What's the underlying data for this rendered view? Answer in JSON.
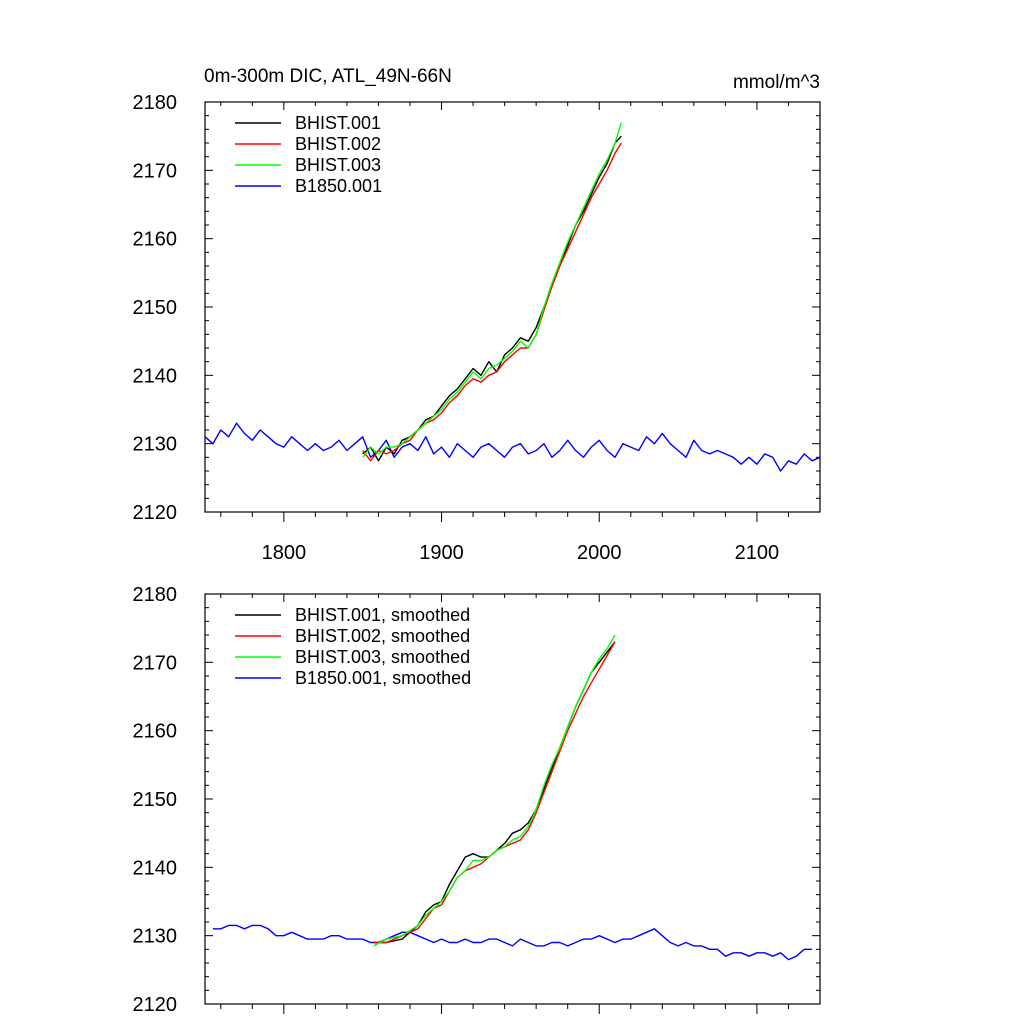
{
  "chart_data": [
    {
      "type": "line",
      "title": "0m-300m DIC, ATL_49N-66N",
      "units": "mmol/m^3",
      "xlim": [
        1750,
        2140
      ],
      "ylim": [
        2120,
        2180
      ],
      "xticks": [
        1800,
        1900,
        2000,
        2100
      ],
      "yticks": [
        2120,
        2130,
        2140,
        2150,
        2160,
        2170,
        2180
      ],
      "legend_position": "top-left",
      "series": [
        {
          "name": "BHIST.001",
          "color": "#000000",
          "x": [
            1850,
            1855,
            1860,
            1865,
            1870,
            1875,
            1880,
            1885,
            1890,
            1895,
            1900,
            1905,
            1910,
            1915,
            1920,
            1925,
            1930,
            1935,
            1940,
            1945,
            1950,
            1955,
            1960,
            1965,
            1970,
            1975,
            1980,
            1985,
            1990,
            1995,
            2000,
            2005,
            2010,
            2014
          ],
          "y": [
            2128.5,
            2129.5,
            2127.5,
            2129.5,
            2128.5,
            2130.5,
            2131,
            2132,
            2133.5,
            2134,
            2135.5,
            2137,
            2138,
            2139.5,
            2141,
            2140,
            2142,
            2140.5,
            2143,
            2144,
            2145.5,
            2145,
            2147,
            2150,
            2153,
            2156,
            2159,
            2162,
            2164,
            2166.5,
            2169,
            2171,
            2174,
            2175
          ]
        },
        {
          "name": "BHIST.002",
          "color": "#ff0000",
          "x": [
            1850,
            1855,
            1860,
            1865,
            1870,
            1875,
            1880,
            1885,
            1890,
            1895,
            1900,
            1905,
            1910,
            1915,
            1920,
            1925,
            1930,
            1935,
            1940,
            1945,
            1950,
            1955,
            1960,
            1965,
            1970,
            1975,
            1980,
            1985,
            1990,
            1995,
            2000,
            2005,
            2010,
            2014
          ],
          "y": [
            2129,
            2127.5,
            2129,
            2128.5,
            2129,
            2130,
            2130.5,
            2132,
            2133,
            2133.5,
            2134.5,
            2136,
            2137,
            2138.5,
            2139.5,
            2139,
            2140,
            2140.5,
            2142,
            2143,
            2144,
            2144,
            2146,
            2149.5,
            2153,
            2156,
            2158.5,
            2161,
            2163.5,
            2166,
            2168,
            2170,
            2172.5,
            2174
          ]
        },
        {
          "name": "BHIST.003",
          "color": "#00ff00",
          "x": [
            1850,
            1855,
            1860,
            1865,
            1870,
            1875,
            1880,
            1885,
            1890,
            1895,
            1900,
            1905,
            1910,
            1915,
            1920,
            1925,
            1930,
            1935,
            1940,
            1945,
            1950,
            1955,
            1960,
            1965,
            1970,
            1975,
            1980,
            1985,
            1990,
            1995,
            2000,
            2005,
            2010,
            2014
          ],
          "y": [
            2128,
            2129.5,
            2128.5,
            2129.5,
            2129.5,
            2130,
            2131,
            2132,
            2133,
            2134,
            2135,
            2136.5,
            2137.5,
            2139,
            2140.5,
            2139.5,
            2141,
            2141.5,
            2142.5,
            2143.5,
            2145,
            2144,
            2146,
            2150,
            2153.5,
            2156.5,
            2159.5,
            2162,
            2164.5,
            2167,
            2169.5,
            2171.5,
            2174,
            2177
          ]
        },
        {
          "name": "B1850.001",
          "color": "#0000ff",
          "x": [
            1750,
            1755,
            1760,
            1765,
            1770,
            1775,
            1780,
            1785,
            1790,
            1795,
            1800,
            1805,
            1810,
            1815,
            1820,
            1825,
            1830,
            1835,
            1840,
            1845,
            1850,
            1855,
            1860,
            1865,
            1870,
            1875,
            1880,
            1885,
            1890,
            1895,
            1900,
            1905,
            1910,
            1915,
            1920,
            1925,
            1930,
            1935,
            1940,
            1945,
            1950,
            1955,
            1960,
            1965,
            1970,
            1975,
            1980,
            1985,
            1990,
            1995,
            2000,
            2005,
            2010,
            2015,
            2020,
            2025,
            2030,
            2035,
            2040,
            2045,
            2050,
            2055,
            2060,
            2065,
            2070,
            2075,
            2080,
            2085,
            2090,
            2095,
            2100,
            2105,
            2110,
            2115,
            2120,
            2125,
            2130,
            2135,
            2140
          ],
          "y": [
            2131,
            2130,
            2132,
            2131,
            2133,
            2131.5,
            2130.5,
            2132,
            2131,
            2130,
            2129.5,
            2131,
            2130,
            2129,
            2130,
            2129,
            2129.5,
            2130.5,
            2129,
            2130,
            2131,
            2128,
            2129,
            2130.5,
            2128,
            2129.5,
            2130,
            2129,
            2131,
            2128.5,
            2129.5,
            2128,
            2130,
            2129,
            2128,
            2129.5,
            2130,
            2129,
            2128,
            2129.5,
            2130,
            2128.5,
            2129,
            2130,
            2128,
            2129,
            2130.5,
            2129,
            2128,
            2129.5,
            2130.5,
            2129,
            2128,
            2130,
            2129.5,
            2129,
            2131,
            2130,
            2131.5,
            2130,
            2129,
            2128,
            2130.5,
            2129,
            2128.5,
            2129,
            2128.5,
            2128,
            2127,
            2128,
            2127,
            2128.5,
            2128,
            2126,
            2127.5,
            2127,
            2128.5,
            2127.5,
            2128
          ]
        }
      ]
    },
    {
      "type": "line",
      "xlim": [
        1750,
        2140
      ],
      "ylim": [
        2120,
        2180
      ],
      "xticks": [
        1800,
        1900,
        2000,
        2100
      ],
      "yticks": [
        2120,
        2130,
        2140,
        2150,
        2160,
        2170,
        2180
      ],
      "legend_position": "top-left",
      "series": [
        {
          "name": "BHIST.001, smoothed",
          "color": "#000000",
          "x": [
            1857,
            1865,
            1875,
            1885,
            1890,
            1895,
            1900,
            1905,
            1910,
            1915,
            1920,
            1925,
            1930,
            1935,
            1940,
            1945,
            1950,
            1955,
            1960,
            1965,
            1970,
            1975,
            1980,
            1985,
            1990,
            1995,
            2000,
            2005,
            2010
          ],
          "y": [
            2129,
            2129,
            2129.5,
            2131.5,
            2133.5,
            2134.5,
            2135,
            2137.5,
            2139.5,
            2141.5,
            2142,
            2141.5,
            2141.5,
            2142.5,
            2143.5,
            2145,
            2145.5,
            2146.5,
            2148.5,
            2151.5,
            2154.5,
            2157.5,
            2160.5,
            2163.5,
            2166,
            2168.5,
            2170,
            2171.5,
            2173
          ]
        },
        {
          "name": "BHIST.002, smoothed",
          "color": "#ff0000",
          "x": [
            1857,
            1865,
            1875,
            1885,
            1890,
            1895,
            1900,
            1905,
            1910,
            1915,
            1920,
            1925,
            1930,
            1935,
            1940,
            1945,
            1950,
            1955,
            1960,
            1965,
            1970,
            1975,
            1980,
            1985,
            1990,
            1995,
            2000,
            2005,
            2010
          ],
          "y": [
            2129,
            2129,
            2130,
            2131,
            2132.5,
            2134,
            2134.5,
            2136.5,
            2138.5,
            2139.5,
            2140,
            2140.5,
            2141.5,
            2142.5,
            2143,
            2143.5,
            2144,
            2145.5,
            2148,
            2151,
            2154,
            2157,
            2160,
            2162.5,
            2165,
            2167,
            2169,
            2171,
            2173
          ]
        },
        {
          "name": "BHIST.003, smoothed",
          "color": "#00ff00",
          "x": [
            1857,
            1865,
            1875,
            1885,
            1890,
            1895,
            1900,
            1905,
            1910,
            1915,
            1920,
            1925,
            1930,
            1935,
            1940,
            1945,
            1950,
            1955,
            1960,
            1965,
            1970,
            1975,
            1980,
            1985,
            1990,
            1995,
            2000,
            2005,
            2010
          ],
          "y": [
            2128.5,
            2129.5,
            2130,
            2131.5,
            2133,
            2134,
            2135,
            2136.5,
            2138.5,
            2139.5,
            2141,
            2141,
            2141.5,
            2142.5,
            2143,
            2144,
            2144.5,
            2146,
            2148.5,
            2152,
            2155,
            2157.5,
            2160.5,
            2163.5,
            2166,
            2168.5,
            2170.5,
            2172,
            2174
          ]
        },
        {
          "name": "B1850.001, smoothed",
          "color": "#0000ff",
          "x": [
            1755,
            1760,
            1765,
            1770,
            1775,
            1780,
            1785,
            1790,
            1795,
            1800,
            1805,
            1810,
            1815,
            1820,
            1825,
            1830,
            1835,
            1840,
            1845,
            1850,
            1855,
            1860,
            1865,
            1870,
            1875,
            1880,
            1885,
            1890,
            1895,
            1900,
            1905,
            1910,
            1915,
            1920,
            1925,
            1930,
            1935,
            1940,
            1945,
            1950,
            1955,
            1960,
            1965,
            1970,
            1975,
            1980,
            1985,
            1990,
            1995,
            2000,
            2005,
            2010,
            2015,
            2020,
            2025,
            2030,
            2035,
            2040,
            2045,
            2050,
            2055,
            2060,
            2065,
            2070,
            2075,
            2080,
            2085,
            2090,
            2095,
            2100,
            2105,
            2110,
            2115,
            2120,
            2125,
            2130,
            2135
          ],
          "y": [
            2131,
            2131,
            2131.5,
            2131.5,
            2131,
            2131.5,
            2131.5,
            2131,
            2130,
            2130,
            2130.5,
            2130,
            2129.5,
            2129.5,
            2129.5,
            2130,
            2130,
            2129.5,
            2129.5,
            2129.5,
            2129,
            2129,
            2129.5,
            2130,
            2130.5,
            2130.5,
            2130,
            2129.5,
            2129,
            2129.5,
            2129,
            2129,
            2129.5,
            2129,
            2129,
            2129.5,
            2129.5,
            2129,
            2128.5,
            2129.5,
            2129,
            2128.5,
            2128.5,
            2129,
            2129,
            2128.5,
            2129,
            2129.5,
            2129.5,
            2130,
            2129.5,
            2129,
            2129.5,
            2129.5,
            2130,
            2130.5,
            2131,
            2130,
            2129,
            2128.5,
            2129,
            2128.5,
            2128.5,
            2128,
            2128,
            2127,
            2127.5,
            2127.5,
            2127,
            2127.5,
            2127.5,
            2127,
            2127.5,
            2126.5,
            2127,
            2128,
            2128
          ]
        }
      ]
    }
  ]
}
